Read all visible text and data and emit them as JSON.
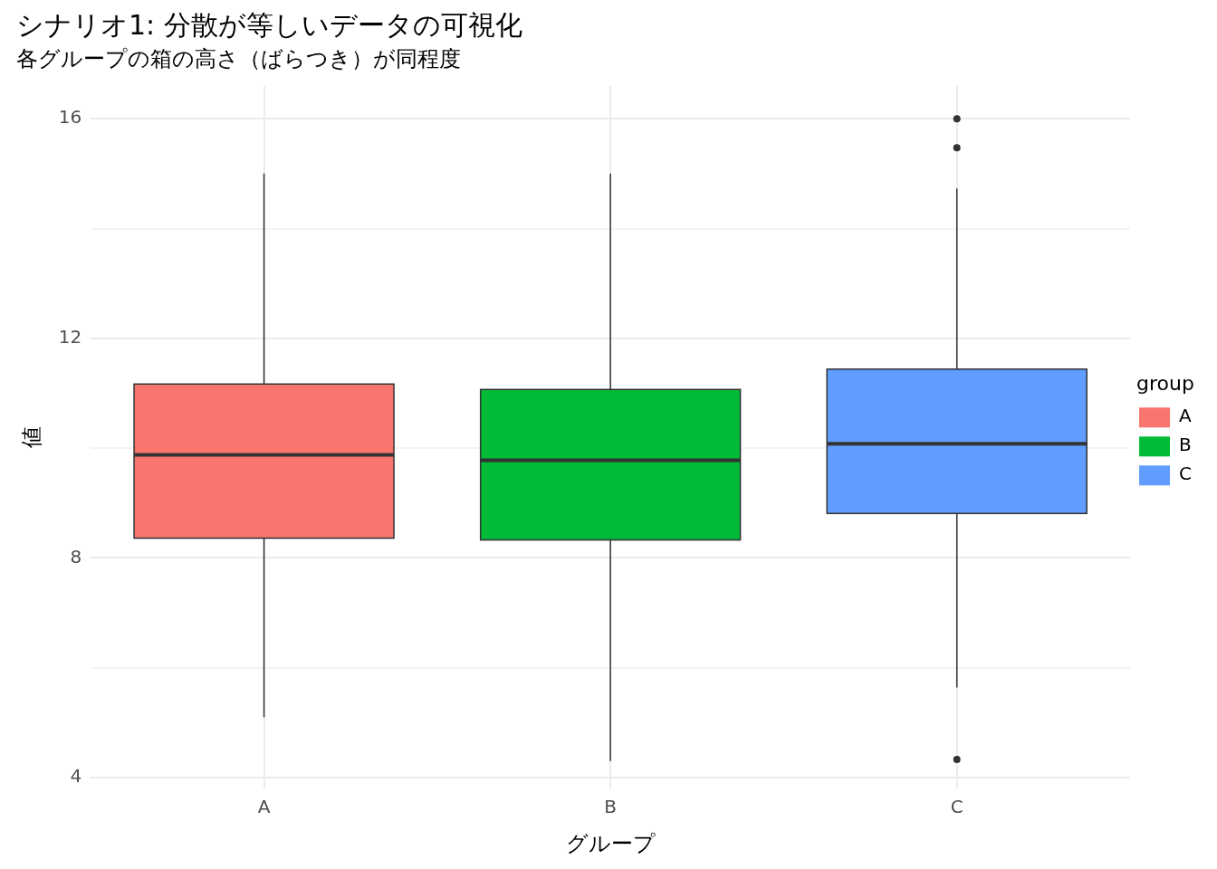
{
  "chart_data": {
    "type": "box",
    "title": "シナリオ1: 分散が等しいデータの可視化",
    "subtitle": "各グループの箱の高さ（ばらつき）が同程度",
    "xlabel": "グループ",
    "ylabel": "値",
    "legend_title": "group",
    "legend": "right",
    "grid": true,
    "categories": [
      "A",
      "B",
      "C"
    ],
    "series": [
      {
        "name": "A",
        "color": "#f8766d",
        "boxes": [
          {
            "low": 5.1,
            "q1": 8.36,
            "median": 9.88,
            "q3": 11.17,
            "high": 15.0
          },
          null,
          null
        ]
      },
      {
        "name": "B",
        "color": "#00ba38",
        "boxes": [
          null,
          {
            "low": 4.3,
            "q1": 8.33,
            "median": 9.78,
            "q3": 11.07,
            "high": 15.0
          },
          null
        ]
      },
      {
        "name": "C",
        "color": "#619cff",
        "boxes": [
          null,
          null,
          {
            "low": 5.64,
            "q1": 8.81,
            "median": 10.08,
            "q3": 11.44,
            "high": 14.73,
            "outliers": [
              16.0,
              15.47,
              4.33
            ]
          }
        ]
      }
    ],
    "ylim": [
      3.8,
      16.6
    ],
    "yticks": [
      4,
      {
        "value": 6,
        "label": null
      },
      8,
      {
        "value": 10,
        "label": null
      },
      12,
      {
        "value": 14,
        "label": null
      },
      16
    ]
  }
}
